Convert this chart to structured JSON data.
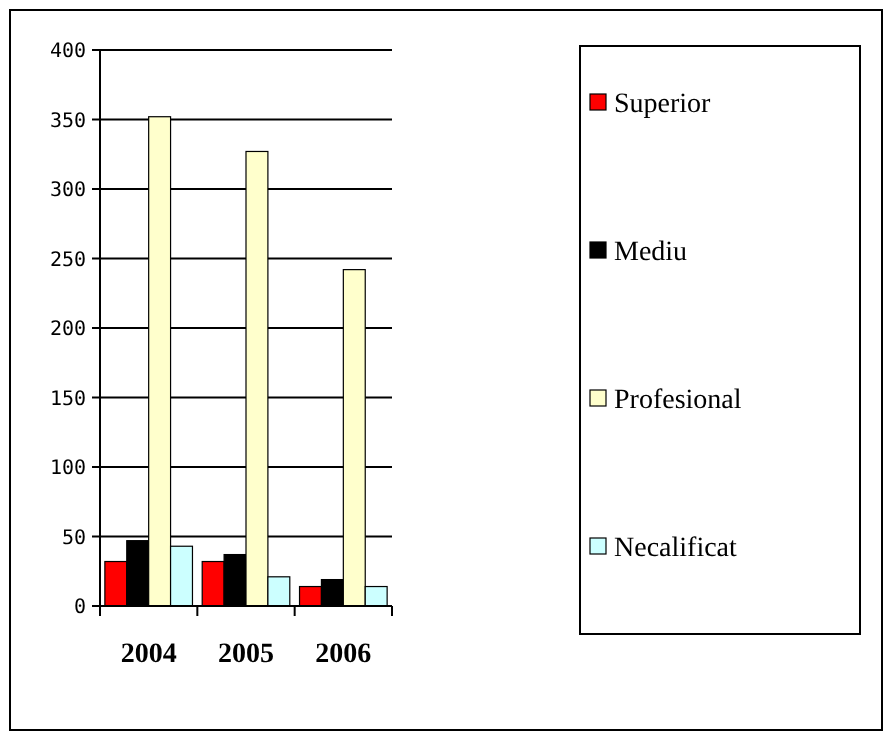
{
  "chart_data": {
    "type": "bar",
    "categories": [
      "2004",
      "2005",
      "2006"
    ],
    "series": [
      {
        "name": "Superior",
        "color": "#ff0000",
        "values": [
          32,
          32,
          14
        ]
      },
      {
        "name": "Mediu",
        "color": "#000000",
        "values": [
          47,
          37,
          19
        ]
      },
      {
        "name": "Profesional",
        "color": "#ffffcc",
        "values": [
          352,
          327,
          242
        ]
      },
      {
        "name": "Necalificat",
        "color": "#ccffff",
        "values": [
          43,
          21,
          14
        ]
      }
    ],
    "ylim": [
      0,
      400
    ],
    "yticks": [
      0,
      50,
      100,
      150,
      200,
      250,
      300,
      350,
      400
    ],
    "grid": "y",
    "legend": "right"
  }
}
